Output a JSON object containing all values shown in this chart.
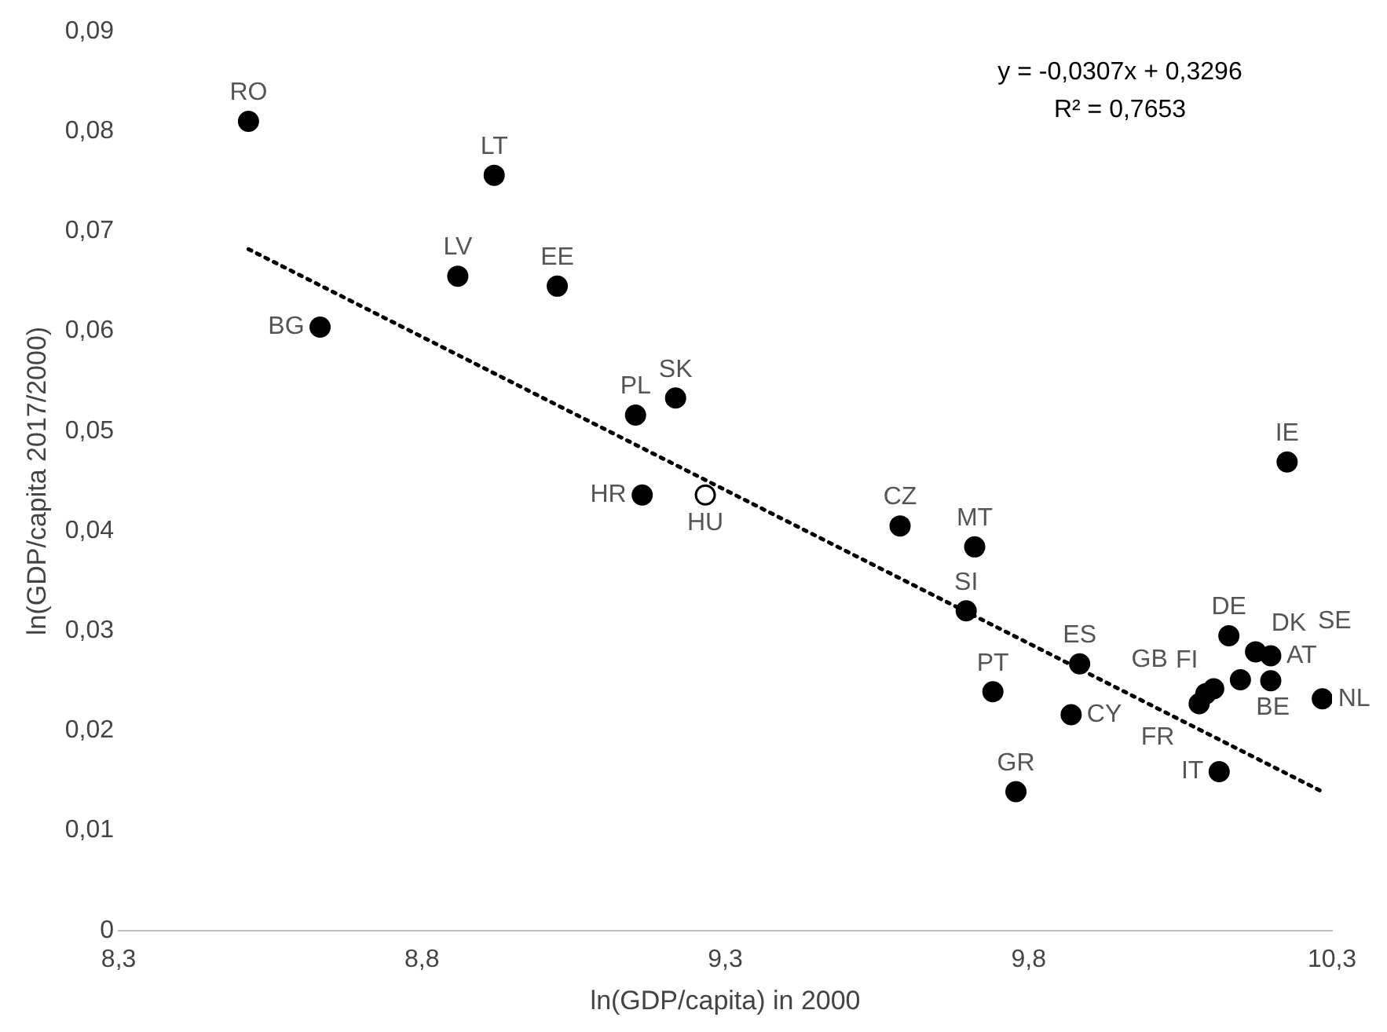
{
  "chart_data": {
    "type": "scatter",
    "xlabel": "ln(GDP/capita) in 2000",
    "ylabel": "ln(GDP/capita 2017/2000)",
    "annotations": [
      "y = -0,0307x + 0,3296",
      "R² = 0,7653"
    ],
    "marker": "circle",
    "grid": false,
    "legend": false,
    "xlim": [
      8.3,
      10.3
    ],
    "ylim": [
      0,
      0.09
    ],
    "xticks": [
      {
        "value": 8.3,
        "label": "8,3"
      },
      {
        "value": 8.8,
        "label": "8,8"
      },
      {
        "value": 9.3,
        "label": "9,3"
      },
      {
        "value": 9.8,
        "label": "9,8"
      },
      {
        "value": 10.3,
        "label": "10,3"
      }
    ],
    "yticks": [
      0,
      {
        "value": 0.01,
        "label": "0,01"
      },
      {
        "value": 0.02,
        "label": "0,02"
      },
      {
        "value": 0.03,
        "label": "0,03"
      },
      {
        "value": 0.04,
        "label": "0,04"
      },
      {
        "value": 0.05,
        "label": "0,05"
      },
      {
        "value": 0.06,
        "label": "0,06"
      },
      {
        "value": 0.07,
        "label": "0,07"
      },
      {
        "value": 0.08,
        "label": "0,08"
      },
      {
        "value": 0.09,
        "label": "0,09"
      }
    ],
    "series": [
      {
        "color": "#000000",
        "x": [
          8.514,
          8.632,
          8.919,
          8.859,
          9.023,
          9.152,
          9.218,
          9.163,
          9.267,
          9.588,
          9.711,
          9.697,
          9.741,
          9.779,
          9.884,
          9.87,
          10.13,
          10.174,
          10.199,
          10.149,
          10.199,
          10.105,
          10.081,
          10.092,
          10.284,
          10.226,
          10.114
        ],
        "values": [
          0.081,
          0.0604,
          0.0756,
          0.0655,
          0.0645,
          0.0516,
          0.0533,
          0.0436,
          0.0436,
          0.0405,
          0.0384,
          0.032,
          0.0239,
          0.0139,
          0.0267,
          0.0216,
          0.0295,
          0.0279,
          0.0275,
          0.0251,
          0.025,
          0.0242,
          0.0227,
          0.0237,
          0.0232,
          0.0469,
          0.0159
        ],
        "colors": [
          "#000000",
          "#000000",
          "#000000",
          "#000000",
          "#000000",
          "#000000",
          "#000000",
          "#000000",
          "#ffffff",
          "#000000",
          "#000000",
          "#000000",
          "#000000",
          "#000000",
          "#000000",
          "#000000",
          "#000000",
          "#000000",
          "#000000",
          "#000000",
          "#000000",
          "#000000",
          "#000000",
          "#000000",
          "#000000",
          "#000000",
          "#000000"
        ],
        "value_labels": [
          "RO",
          "BG",
          "LT",
          "LV",
          "EE",
          "PL",
          "SK",
          "HR",
          "HU",
          "CZ",
          "MT",
          "SI",
          "PT",
          "GR",
          "ES",
          "CY",
          "DE",
          "DK",
          "AT",
          "BE",
          "SE",
          "FI",
          "GB",
          "FR",
          "NL",
          "IE",
          "IT"
        ]
      },
      {
        "type": "line",
        "color": "#000000",
        "line_style": "dotted",
        "marker": "none",
        "x": [
          8.514,
          10.284
        ],
        "values": [
          0.0682,
          0.0139
        ]
      }
    ]
  }
}
